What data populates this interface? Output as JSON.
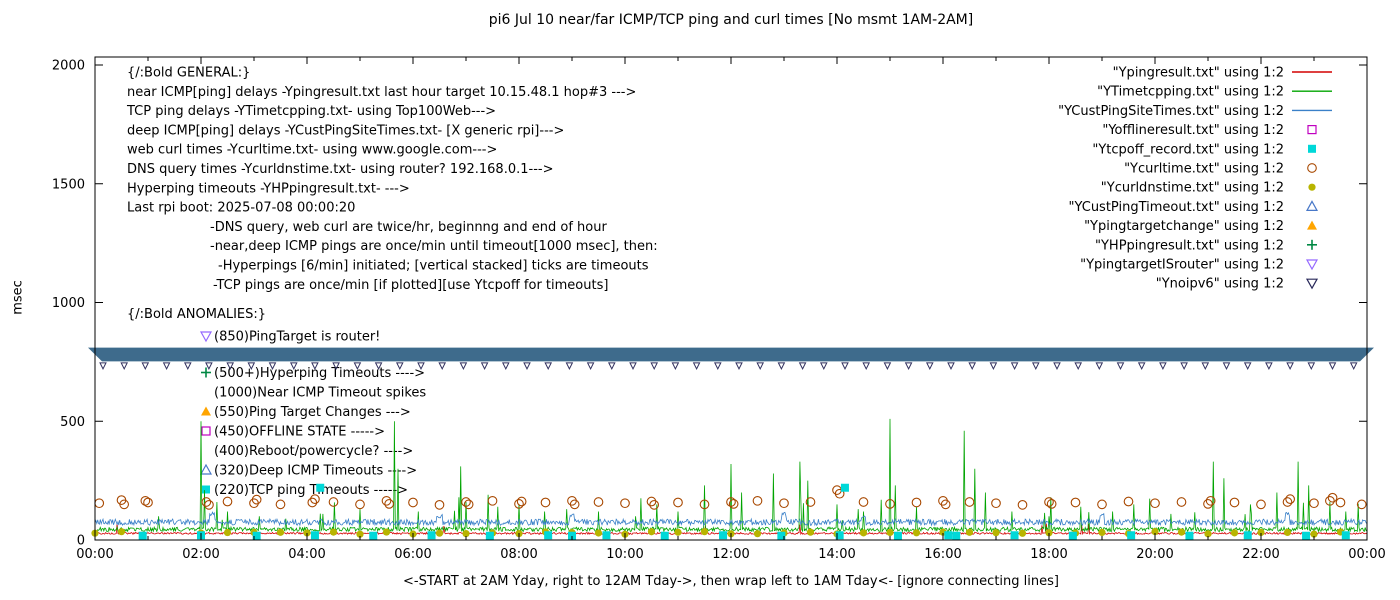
{
  "chart_data": {
    "type": "line",
    "title": "pi6 Jul 10  near/far ICMP/TCP ping and curl times [No msmt 1AM-2AM]",
    "ylabel": "msec",
    "xlabel": "<-START at 2AM Yday, right to 12AM Tday->, then wrap left to 1AM Tday<- [ignore connecting lines]",
    "ylim": [
      0,
      2000
    ],
    "xlim_hours": [
      0,
      24
    ],
    "y_ticks": [
      0,
      500,
      1000,
      1500,
      2000
    ],
    "x_ticks": [
      "00:00",
      "02:00",
      "04:00",
      "06:00",
      "08:00",
      "10:00",
      "12:00",
      "14:00",
      "16:00",
      "18:00",
      "20:00",
      "22:00",
      "00:00"
    ],
    "legend": [
      {
        "label": "\"Ypingresult.txt\" using 1:2",
        "symbol": "line",
        "color": "#d40000"
      },
      {
        "label": "\"YTimetcpping.txt\" using 1:2",
        "symbol": "line",
        "color": "#00a400"
      },
      {
        "label": "\"YCustPingSiteTimes.txt\" using 1:2",
        "symbol": "line",
        "color": "#3a80c8"
      },
      {
        "label": "\"Yofflineresult.txt\" using 1:2",
        "symbol": "square-open",
        "color": "#c000c0"
      },
      {
        "label": "\"Ytcpoff_record.txt\" using 1:2",
        "symbol": "square-filled",
        "color": "#00d8d8"
      },
      {
        "label": "\"Ycurltime.txt\" using 1:2",
        "symbol": "circle-open",
        "color": "#a84800"
      },
      {
        "label": "\"Ycurldnstime.txt\" using 1:2",
        "symbol": "circle-filled",
        "color": "#b8b400"
      },
      {
        "label": "\"YCustPingTimeout.txt\" using 1:2",
        "symbol": "triangle-up-open",
        "color": "#4878c8"
      },
      {
        "label": "\"Ypingtargetchange\" using 1:2",
        "symbol": "triangle-up-filled",
        "color": "#ffa500"
      },
      {
        "label": "\"YHPpingresult.txt\" using 1:2",
        "symbol": "plus",
        "color": "#008844"
      },
      {
        "label": "\"YpingtargetISrouter\" using 1:2",
        "symbol": "triangle-down-open",
        "color": "#9468ff"
      },
      {
        "label": "\"Ynoipv6\" using 1:2",
        "symbol": "triangle-down-open",
        "color": "#28285a"
      }
    ],
    "annotations": {
      "general": [
        {
          "x": 127,
          "text": "{/:Bold GENERAL:}"
        },
        {
          "x": 127,
          "text": "near ICMP[ping] delays -Ypingresult.txt last hour target 10.15.48.1 hop#3 --->"
        },
        {
          "x": 127,
          "text": "TCP ping delays -YTimetcpping.txt- using Top100Web--->"
        },
        {
          "x": 127,
          "text": "deep ICMP[ping] delays -YCustPingSiteTimes.txt- [X generic rpi]--->"
        },
        {
          "x": 127,
          "text": "web curl times -Ycurltime.txt- using www.google.com--->"
        },
        {
          "x": 127,
          "text": "DNS query times -Ycurldnstime.txt- using router? 192.168.0.1--->"
        },
        {
          "x": 127,
          "text": "Hyperping timeouts -YHPpingresult.txt- --->"
        },
        {
          "x": 127,
          "text": "Last rpi boot: 2025-07-08 00:00:20"
        },
        {
          "x": 210,
          "text": "-DNS query, web curl are twice/hr, beginnng and end of hour"
        },
        {
          "x": 210,
          "text": "-near,deep ICMP pings are once/min until timeout[1000 msec], then:"
        },
        {
          "x": 218,
          "text": "-Hyperpings [6/min] initiated; [vertical stacked] ticks are timeouts"
        },
        {
          "x": 213,
          "text": "-TCP pings are once/min [if plotted][use Ytcpoff for timeouts]"
        }
      ],
      "anomalies_header": {
        "x": 127,
        "text": "{/:Bold ANOMALIES:}"
      },
      "anomalies": [
        {
          "marker": "triangle-down-open",
          "color": "#9468ff",
          "text": "(850)PingTarget is router!"
        },
        {
          "marker": "plus",
          "color": "#008844",
          "text": "(500+)Hyperping Timeouts ---->"
        },
        {
          "marker": null,
          "color": null,
          "text": "(1000)Near ICMP Timeout spikes"
        },
        {
          "marker": "triangle-up-filled",
          "color": "#ffa500",
          "text": "(550)Ping Target Changes --->"
        },
        {
          "marker": "square-open",
          "color": "#c000c0",
          "text": "(450)OFFLINE STATE ----->"
        },
        {
          "marker": null,
          "color": null,
          "text": "(400)Reboot/powercycle? ---->"
        },
        {
          "marker": "triangle-up-open",
          "color": "#4878c8",
          "text": "(320)Deep ICMP Timeouts ---->"
        },
        {
          "marker": "square-filled",
          "color": "#00d8d8",
          "text": "(220)TCP ping Timeouts ----->"
        }
      ]
    },
    "band": {
      "name": "Ynoipv6",
      "color": "#3e6b8c",
      "from_msec": 752,
      "to_msec": 810
    },
    "band_ticks": {
      "color": "#32325f",
      "interval_hours": 0.4,
      "msec": 733
    },
    "series": {
      "near_icmp": {
        "file": "Ypingresult.txt",
        "color": "#d40000",
        "baseline_msec": 28,
        "noise_msec": 4
      },
      "tcp_ping": {
        "file": "YTimetcpping.txt",
        "color": "#00a400",
        "baseline_msec": 45,
        "noise_msec": 9,
        "spikes": [
          [
            2.0,
            500
          ],
          [
            2.07,
            210
          ],
          [
            2.3,
            160
          ],
          [
            2.5,
            120
          ],
          [
            3.1,
            100
          ],
          [
            3.6,
            90
          ],
          [
            4.3,
            110
          ],
          [
            5.0,
            130
          ],
          [
            5.65,
            500
          ],
          [
            5.72,
            300
          ],
          [
            6.1,
            120
          ],
          [
            6.9,
            310
          ],
          [
            7.0,
            160
          ],
          [
            7.6,
            140
          ],
          [
            8.0,
            150
          ],
          [
            8.9,
            130
          ],
          [
            9.5,
            120
          ],
          [
            10.2,
            100
          ],
          [
            10.6,
            150
          ],
          [
            11.0,
            120
          ],
          [
            11.5,
            230
          ],
          [
            12.0,
            320
          ],
          [
            12.2,
            200
          ],
          [
            12.8,
            280
          ],
          [
            13.3,
            330
          ],
          [
            13.45,
            250
          ],
          [
            14.0,
            150
          ],
          [
            14.5,
            120
          ],
          [
            15.0,
            510
          ],
          [
            15.1,
            230
          ],
          [
            15.5,
            140
          ],
          [
            16.4,
            460
          ],
          [
            16.6,
            300
          ],
          [
            16.8,
            200
          ],
          [
            17.3,
            120
          ],
          [
            18.0,
            100
          ],
          [
            18.6,
            140
          ],
          [
            19.2,
            120
          ],
          [
            19.6,
            150
          ],
          [
            20.3,
            110
          ],
          [
            21.1,
            330
          ],
          [
            21.3,
            260
          ],
          [
            21.8,
            150
          ],
          [
            22.3,
            200
          ],
          [
            22.7,
            330
          ],
          [
            22.9,
            230
          ],
          [
            23.3,
            160
          ],
          [
            23.6,
            120
          ]
        ]
      },
      "deep_icmp": {
        "file": "YCustPingSiteTimes.txt",
        "color": "#3a80c8",
        "baseline_msec": 75,
        "noise_msec": 13,
        "bumps": [
          [
            2.2,
            110
          ],
          [
            6.5,
            100
          ],
          [
            9.0,
            105
          ],
          [
            13.0,
            110
          ],
          [
            14.5,
            100
          ],
          [
            19.0,
            105
          ],
          [
            22.5,
            110
          ]
        ]
      },
      "curl": {
        "file": "Ycurltime.txt",
        "color": "#a84800",
        "points": [
          [
            0.08,
            155
          ],
          [
            0.5,
            168
          ],
          [
            0.55,
            150
          ],
          [
            0.95,
            165
          ],
          [
            1.0,
            158
          ],
          [
            2.1,
            160
          ],
          [
            2.15,
            148
          ],
          [
            2.5,
            162
          ],
          [
            3.0,
            155
          ],
          [
            3.05,
            170
          ],
          [
            3.5,
            150
          ],
          [
            4.1,
            158
          ],
          [
            4.15,
            172
          ],
          [
            4.5,
            160
          ],
          [
            5.0,
            150
          ],
          [
            5.5,
            165
          ],
          [
            5.55,
            152
          ],
          [
            6.0,
            158
          ],
          [
            6.5,
            148
          ],
          [
            7.0,
            160
          ],
          [
            7.05,
            150
          ],
          [
            7.5,
            165
          ],
          [
            8.0,
            152
          ],
          [
            8.05,
            162
          ],
          [
            8.5,
            158
          ],
          [
            9.0,
            165
          ],
          [
            9.05,
            150
          ],
          [
            9.5,
            160
          ],
          [
            10.0,
            155
          ],
          [
            10.5,
            162
          ],
          [
            10.55,
            148
          ],
          [
            11.0,
            158
          ],
          [
            11.5,
            150
          ],
          [
            12.0,
            160
          ],
          [
            12.05,
            152
          ],
          [
            12.5,
            165
          ],
          [
            13.0,
            155
          ],
          [
            13.5,
            160
          ],
          [
            14.0,
            210
          ],
          [
            14.05,
            195
          ],
          [
            14.5,
            160
          ],
          [
            15.0,
            152
          ],
          [
            15.5,
            158
          ],
          [
            16.0,
            165
          ],
          [
            16.05,
            150
          ],
          [
            16.5,
            160
          ],
          [
            17.0,
            155
          ],
          [
            17.5,
            148
          ],
          [
            18.0,
            160
          ],
          [
            18.05,
            152
          ],
          [
            18.5,
            158
          ],
          [
            19.0,
            150
          ],
          [
            19.5,
            162
          ],
          [
            20.0,
            155
          ],
          [
            20.5,
            160
          ],
          [
            21.0,
            152
          ],
          [
            21.05,
            165
          ],
          [
            21.5,
            158
          ],
          [
            22.0,
            150
          ],
          [
            22.5,
            160
          ],
          [
            22.55,
            172
          ],
          [
            23.0,
            155
          ],
          [
            23.3,
            165
          ],
          [
            23.35,
            178
          ],
          [
            23.5,
            158
          ],
          [
            23.9,
            150
          ]
        ]
      },
      "dns": {
        "file": "Ycurldnstime.txt",
        "color": "#b8b400",
        "interval_hours": 0.5,
        "skip_hours": [
          1.0,
          1.5
        ],
        "typical_msec": 30
      },
      "tcpoff": {
        "file": "Ytcpoff_record.txt",
        "color": "#00d8d8",
        "points": [
          [
            0.9,
            18
          ],
          [
            2.0,
            20
          ],
          [
            3.05,
            18
          ],
          [
            4.15,
            20
          ],
          [
            4.25,
            220
          ],
          [
            5.25,
            18
          ],
          [
            6.35,
            20
          ],
          [
            7.45,
            18
          ],
          [
            8.55,
            20
          ],
          [
            9.0,
            18
          ],
          [
            9.65,
            20
          ],
          [
            10.75,
            18
          ],
          [
            11.85,
            20
          ],
          [
            12.95,
            18
          ],
          [
            14.05,
            20
          ],
          [
            14.15,
            220
          ],
          [
            15.15,
            18
          ],
          [
            16.1,
            20
          ],
          [
            16.25,
            18
          ],
          [
            17.35,
            20
          ],
          [
            18.45,
            18
          ],
          [
            19.55,
            20
          ],
          [
            20.65,
            18
          ],
          [
            21.75,
            20
          ],
          [
            22.85,
            18
          ],
          [
            23.6,
            20
          ]
        ]
      }
    }
  }
}
